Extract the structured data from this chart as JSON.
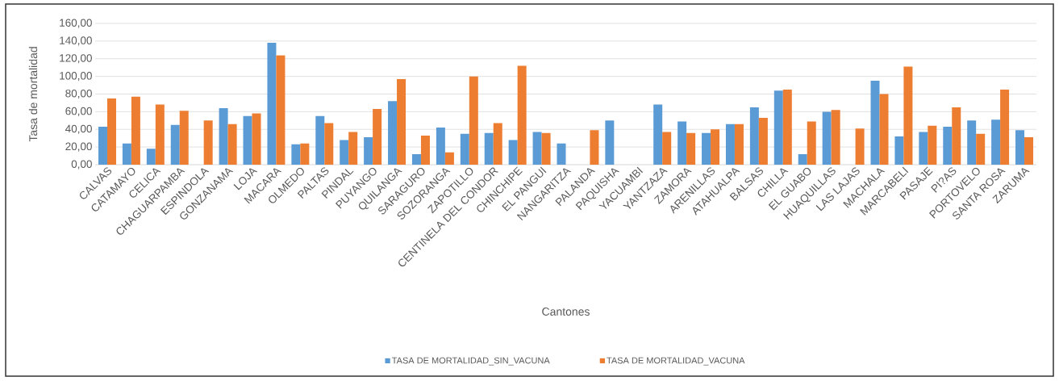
{
  "chart_data": {
    "type": "bar",
    "xlabel": "Cantones",
    "ylabel": "Tasa de mortalidad",
    "categories": [
      "CALVAS",
      "CATAMAYO",
      "CELICA",
      "CHAGUARPAMBA",
      "ESPINDOLA",
      "GONZANAMA",
      "LOJA",
      "MACARA",
      "OLMEDO",
      "PALTAS",
      "PINDAL",
      "PUYANGO",
      "QUILANGA",
      "SARAGURO",
      "SOZORANGA",
      "ZAPOTILLO",
      "CENTINELA DEL CONDOR",
      "CHINCHIPE",
      "EL PANGUI",
      "NANGARITZA",
      "PALANDA",
      "PAQUISHA",
      "YACUAMBI",
      "YANTZAZA",
      "ZAMORA",
      "ARENILLAS",
      "ATAHUALPA",
      "BALSAS",
      "CHILLA",
      "EL GUABO",
      "HUAQUILLAS",
      "LAS LAJAS",
      "MACHALA",
      "MARCABELI",
      "PASAJE",
      "PI?AS",
      "PORTOVELO",
      "SANTA ROSA",
      "ZARUMA"
    ],
    "series": [
      {
        "name": "TASA DE MORTALIDAD_SIN_VACUNA",
        "color": "#5b9bd5",
        "values": [
          43,
          24,
          18,
          45,
          0,
          64,
          55,
          138,
          23,
          55,
          28,
          31,
          72,
          12,
          42,
          35,
          36,
          28,
          37,
          24,
          0,
          50,
          0,
          68,
          49,
          36,
          46,
          65,
          84,
          12,
          60,
          0,
          95,
          32,
          37,
          43,
          50,
          51,
          39
        ]
      },
      {
        "name": "TASA DE MORTALIDAD_VACUNA",
        "color": "#ed7d31",
        "values": [
          75,
          77,
          68,
          61,
          50,
          46,
          58,
          124,
          24,
          47,
          37,
          63,
          97,
          33,
          14,
          100,
          47,
          112,
          36,
          0,
          39,
          0,
          0,
          37,
          36,
          40,
          46,
          53,
          85,
          49,
          62,
          41,
          80,
          111,
          44,
          65,
          35,
          85,
          31
        ]
      }
    ],
    "ylim": [
      0,
      160
    ],
    "yticks": [
      {
        "value": 0,
        "label": "0,00"
      },
      {
        "value": 20,
        "label": "20,00"
      },
      {
        "value": 40,
        "label": "40,00"
      },
      {
        "value": 60,
        "label": "60,00"
      },
      {
        "value": 80,
        "label": "80,00"
      },
      {
        "value": 100,
        "label": "100,00"
      },
      {
        "value": 120,
        "label": "120,00"
      },
      {
        "value": 140,
        "label": "140,00"
      },
      {
        "value": 160,
        "label": "160,00"
      }
    ],
    "grid": "y",
    "legend": "bottom"
  }
}
